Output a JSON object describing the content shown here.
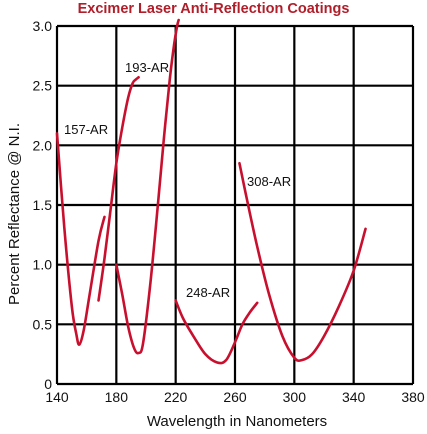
{
  "chart_data": {
    "type": "line",
    "title": "Excimer Laser Anti-Reflection Coatings",
    "title_color": "#b01e2a",
    "curve_color": "#c8102e",
    "xlabel": "Wavelength in Nanometers",
    "ylabel": "Percent Reflectance @ N.I.",
    "xlim": [
      140,
      380
    ],
    "ylim": [
      0,
      3.0
    ],
    "x_ticks": [
      "140",
      "180",
      "220",
      "260",
      "300",
      "340",
      "380"
    ],
    "y_ticks": [
      "0",
      "0.5",
      "1.0",
      "1.5",
      "2.0",
      "2.5",
      "3.0"
    ],
    "grid": true,
    "series": [
      {
        "name": "157-AR",
        "x": [
          140,
          145,
          150,
          153,
          155,
          158,
          162,
          168,
          172
        ],
        "y": [
          2.1,
          1.3,
          0.65,
          0.42,
          0.33,
          0.45,
          0.75,
          1.2,
          1.4
        ]
      },
      {
        "name": "193-AR",
        "x": [
          168,
          172,
          176,
          180,
          184,
          188,
          191,
          193,
          195
        ],
        "y": [
          0.7,
          1.05,
          1.45,
          1.85,
          2.15,
          2.4,
          2.52,
          2.55,
          2.57
        ]
      },
      {
        "name": "",
        "x": [
          180,
          184,
          188,
          192,
          195,
          198,
          203,
          208,
          212,
          216,
          219,
          221,
          222
        ],
        "y": [
          1.0,
          0.75,
          0.48,
          0.3,
          0.26,
          0.34,
          0.85,
          1.5,
          2.05,
          2.55,
          2.85,
          3.0,
          3.05
        ]
      },
      {
        "name": "248-AR",
        "x": [
          220,
          225,
          232,
          240,
          248,
          254,
          260,
          265,
          270,
          275
        ],
        "y": [
          0.7,
          0.55,
          0.4,
          0.25,
          0.18,
          0.2,
          0.35,
          0.5,
          0.6,
          0.68
        ]
      },
      {
        "name": "308-AR",
        "x": [
          263,
          268,
          275,
          283,
          292,
          300,
          305,
          312,
          320,
          330,
          340,
          348
        ],
        "y": [
          1.85,
          1.55,
          1.15,
          0.75,
          0.4,
          0.22,
          0.2,
          0.25,
          0.4,
          0.65,
          0.95,
          1.3
        ]
      }
    ]
  }
}
